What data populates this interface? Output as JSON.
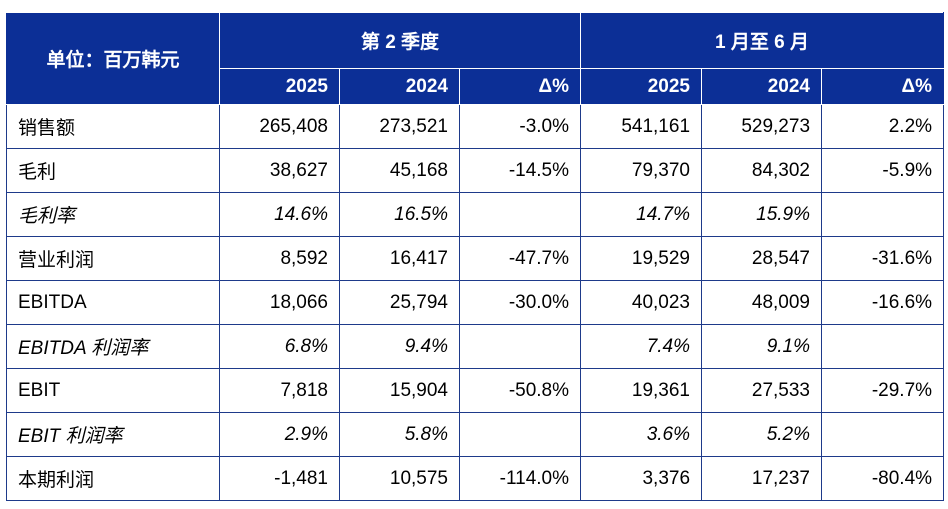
{
  "header": {
    "unit_label": "单位：百万韩元",
    "periods": [
      "第 2 季度",
      "1 月至 6 月"
    ],
    "columns": [
      "2025",
      "2024",
      "Δ%",
      "2025",
      "2024",
      "Δ%"
    ]
  },
  "rows": [
    {
      "label": "销售额",
      "values": [
        "265,408",
        "273,521",
        "-3.0%",
        "541,161",
        "529,273",
        "2.2%"
      ],
      "italic": false
    },
    {
      "label": "毛利",
      "values": [
        "38,627",
        "45,168",
        "-14.5%",
        "79,370",
        "84,302",
        "-5.9%"
      ],
      "italic": false
    },
    {
      "label": "毛利率",
      "values": [
        "14.6%",
        "16.5%",
        "",
        "14.7%",
        "15.9%",
        ""
      ],
      "italic": true
    },
    {
      "label": "营业利润",
      "values": [
        "8,592",
        "16,417",
        "-47.7%",
        "19,529",
        "28,547",
        "-31.6%"
      ],
      "italic": false
    },
    {
      "label": "EBITDA",
      "values": [
        "18,066",
        "25,794",
        "-30.0%",
        "40,023",
        "48,009",
        "-16.6%"
      ],
      "italic": false
    },
    {
      "label": "EBITDA 利润率",
      "values": [
        "6.8%",
        "9.4%",
        "",
        "7.4%",
        "9.1%",
        ""
      ],
      "italic": true
    },
    {
      "label": "EBIT",
      "values": [
        "7,818",
        "15,904",
        "-50.8%",
        "19,361",
        "27,533",
        "-29.7%"
      ],
      "italic": false
    },
    {
      "label": "EBIT 利润率",
      "values": [
        "2.9%",
        "5.8%",
        "",
        "3.6%",
        "5.2%",
        ""
      ],
      "italic": true
    },
    {
      "label": "本期利润",
      "values": [
        "-1,481",
        "10,575",
        "-114.0%",
        "3,376",
        "17,237",
        "-80.4%"
      ],
      "italic": false
    }
  ],
  "colors": {
    "header_bg": "#0c2f96",
    "header_text": "#ffffff",
    "border": "#1e3a8a",
    "body_text": "#000000"
  }
}
